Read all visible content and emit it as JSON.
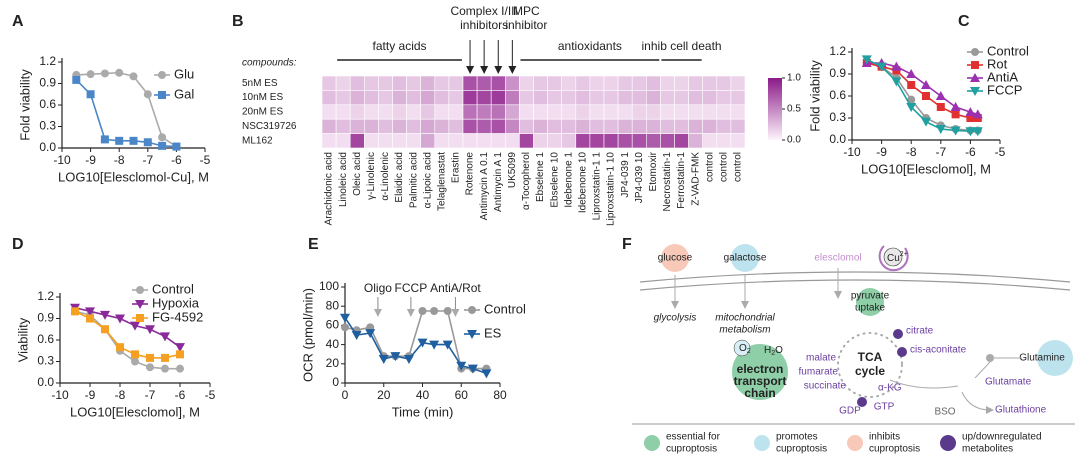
{
  "chart_data": [
    {
      "type": "line",
      "panel": "A",
      "xlabel": "LOG10[Elesclomol-Cu], M",
      "ylabel": "Fold viability",
      "xlim": [
        -10,
        -5
      ],
      "xticks": [
        -10,
        -9,
        -8,
        -7,
        -6,
        -5
      ],
      "ylim": [
        0,
        1.2
      ],
      "yticks": [
        {
          "value": 0,
          "label": "0.0"
        },
        0.3,
        0.6,
        0.9,
        1.2
      ],
      "x": [
        -9.5,
        -9,
        -8.5,
        -8,
        -7.5,
        -7,
        -6.5,
        -6
      ],
      "series": [
        {
          "name": "Glu",
          "color": "#aaaaaa",
          "marker": "circle",
          "values": [
            1.02,
            1.03,
            1.04,
            1.05,
            1.0,
            0.75,
            0.15,
            0.02
          ]
        },
        {
          "name": "Gal",
          "color": "#4a86c8",
          "marker": "square",
          "values": [
            0.95,
            0.75,
            0.12,
            0.1,
            0.1,
            0.08,
            0.03,
            0.02
          ]
        }
      ]
    },
    {
      "type": "heatmap",
      "panel": "B",
      "row_title": "compounds:",
      "groups": [
        {
          "lines": [
            "fatty acids"
          ]
        },
        {
          "lines": [
            "Complex I/III",
            "inhibitors"
          ]
        },
        {
          "lines": [
            "MPC",
            "inhibitor"
          ]
        },
        {
          "lines": [
            "antioxidants"
          ]
        },
        {
          "lines": [
            "inhib cell death"
          ]
        }
      ],
      "x": [
        "Arachidonic acid",
        "Linoleic acid",
        "Oleic acid",
        "γ-Linolenic",
        "α-Linolenic",
        "Elaidic acid",
        "Palmitic acid",
        "α-Lipoic acid",
        "Telaglenastat",
        "Erastin",
        "Rotenone",
        "Antimycin A 0.1",
        "Antimycin A 1",
        "UK5099",
        "α-Tocopherol",
        "Ebselene 1",
        "Ebselene 10",
        "Idebenone 1",
        "Idebenone 10",
        "Liproxstatin-1 1",
        "Liproxstatin-1 10",
        "JP4-039 1",
        "JP4-039 10",
        "Etomoxir",
        "Necrostatin-1",
        "Ferrostatin-1",
        "Z-VAD-FMK",
        "control",
        "control",
        "control"
      ],
      "y": [
        "5nM ES",
        "10nM ES",
        "20nM ES",
        "NSC319726",
        "ML162"
      ],
      "values": [
        [
          0.2,
          0.15,
          0.25,
          0.2,
          0.2,
          0.25,
          0.2,
          0.3,
          0.2,
          0.2,
          0.75,
          0.7,
          0.75,
          0.45,
          0.15,
          0.2,
          0.2,
          0.15,
          0.2,
          0.15,
          0.15,
          0.2,
          0.2,
          0.25,
          0.15,
          0.15,
          0.2,
          0.2,
          0.2,
          0.15
        ],
        [
          0.25,
          0.2,
          0.3,
          0.25,
          0.2,
          0.3,
          0.25,
          0.35,
          0.25,
          0.2,
          0.85,
          0.8,
          0.85,
          0.55,
          0.2,
          0.25,
          0.2,
          0.2,
          0.25,
          0.2,
          0.2,
          0.25,
          0.25,
          0.3,
          0.2,
          0.2,
          0.25,
          0.25,
          0.2,
          0.2
        ],
        [
          0.1,
          0.1,
          0.15,
          0.1,
          0.1,
          0.15,
          0.1,
          0.2,
          0.1,
          0.1,
          0.6,
          0.55,
          0.6,
          0.35,
          0.1,
          0.1,
          0.1,
          0.1,
          0.15,
          0.1,
          0.1,
          0.1,
          0.15,
          0.15,
          0.1,
          0.1,
          0.1,
          0.1,
          0.1,
          0.1
        ],
        [
          0.3,
          0.25,
          0.3,
          0.3,
          0.25,
          0.3,
          0.25,
          0.35,
          0.3,
          0.25,
          0.75,
          0.7,
          0.75,
          0.5,
          0.25,
          0.3,
          0.25,
          0.25,
          0.3,
          0.25,
          0.25,
          0.3,
          0.3,
          0.3,
          0.25,
          0.25,
          0.3,
          0.3,
          0.25,
          0.25
        ],
        [
          0.1,
          0.1,
          0.8,
          0.1,
          0.1,
          0.1,
          0.1,
          0.35,
          0.1,
          0.1,
          0.1,
          0.1,
          0.1,
          0.1,
          0.8,
          0.15,
          0.15,
          0.2,
          0.8,
          0.8,
          0.8,
          0.75,
          0.75,
          0.7,
          0.75,
          0.8,
          0.3,
          0.1,
          0.1,
          0.1
        ]
      ],
      "colorbar_ticks": [
        {
          "value": 1,
          "label": "1.0"
        },
        0.5,
        {
          "value": 0,
          "label": "0.0"
        }
      ],
      "clim": [
        0,
        1
      ],
      "color": "#8b1a89"
    },
    {
      "type": "line",
      "panel": "C",
      "xlabel": "LOG10[Elesclomol], M",
      "ylabel": "Fold viability",
      "xlim": [
        -10,
        -5
      ],
      "xticks": [
        -10,
        -9,
        -8,
        -7,
        -6,
        -5
      ],
      "ylim": [
        0,
        1.2
      ],
      "yticks": [
        {
          "value": 0,
          "label": "0.0"
        },
        0.3,
        0.6,
        0.9,
        1.2
      ],
      "x": [
        -9.5,
        -9,
        -8.5,
        -8,
        -7.5,
        -7,
        -6.5,
        -6,
        -5.75
      ],
      "series": [
        {
          "name": "Control",
          "color": "#999999",
          "marker": "circle",
          "values": [
            1.05,
            1.0,
            0.85,
            0.55,
            0.3,
            0.2,
            0.15,
            0.13,
            0.13
          ]
        },
        {
          "name": "Rot",
          "color": "#e03030",
          "marker": "square",
          "values": [
            1.05,
            1.0,
            0.95,
            0.75,
            0.6,
            0.45,
            0.35,
            0.3,
            0.3
          ]
        },
        {
          "name": "AntiA",
          "color": "#9b30b0",
          "marker": "triangle",
          "values": [
            1.05,
            1.05,
            1.0,
            0.9,
            0.75,
            0.6,
            0.45,
            0.38,
            0.35
          ]
        },
        {
          "name": "FCCP",
          "color": "#20a0a0",
          "marker": "down",
          "values": [
            1.1,
            1.0,
            0.8,
            0.45,
            0.25,
            0.15,
            0.13,
            0.12,
            0.12
          ]
        }
      ]
    },
    {
      "type": "line",
      "panel": "D",
      "xlabel": "LOG10[Elesclomol], M",
      "ylabel": "Viability",
      "xlim": [
        -10,
        -5
      ],
      "xticks": [
        -10,
        -9,
        -8,
        -7,
        -6,
        -5
      ],
      "ylim": [
        0,
        1.2
      ],
      "yticks": [
        {
          "value": 0,
          "label": "0.0"
        },
        0.3,
        0.6,
        0.9,
        1.2
      ],
      "x": [
        -9.5,
        -9,
        -8.5,
        -8,
        -7.5,
        -7,
        -6.5,
        -6
      ],
      "series": [
        {
          "name": "Control",
          "color": "#aaaaaa",
          "marker": "circle",
          "values": [
            1.0,
            0.95,
            0.75,
            0.45,
            0.3,
            0.22,
            0.2,
            0.2
          ]
        },
        {
          "name": "Hypoxia",
          "color": "#8a2a9a",
          "marker": "down",
          "values": [
            1.05,
            1.0,
            0.95,
            0.9,
            0.8,
            0.75,
            0.65,
            0.5
          ]
        },
        {
          "name": "FG-4592",
          "color": "#f5a020",
          "marker": "square",
          "values": [
            1.0,
            0.9,
            0.75,
            0.5,
            0.4,
            0.35,
            0.35,
            0.4
          ]
        }
      ]
    },
    {
      "type": "line",
      "panel": "E",
      "xlabel": "Time (min)",
      "ylabel": "OCR (pmol/min)",
      "xlim": [
        0,
        80
      ],
      "xticks": [
        0,
        20,
        40,
        60,
        80
      ],
      "ylim": [
        0,
        100
      ],
      "yticks": [
        0,
        20,
        40,
        60,
        80,
        100
      ],
      "x": [
        0,
        6,
        13,
        20,
        26,
        33,
        40,
        46,
        53,
        60,
        66,
        73
      ],
      "annotations": [
        {
          "text": "Oligo",
          "x": 17
        },
        {
          "text": "FCCP",
          "x": 34
        },
        {
          "text": "AntiA/Rot",
          "x": 57
        }
      ],
      "series": [
        {
          "name": "Control",
          "color": "#999999",
          "marker": "circle",
          "values": [
            58,
            55,
            58,
            28,
            28,
            28,
            75,
            75,
            75,
            15,
            15,
            15
          ]
        },
        {
          "name": "ES",
          "color": "#1f5f9f",
          "marker": "down",
          "values": [
            68,
            50,
            52,
            25,
            28,
            25,
            42,
            40,
            40,
            18,
            15,
            10
          ]
        }
      ]
    }
  ],
  "diagram": {
    "panel": "F",
    "glucose": "glucose",
    "galactose": "galactose",
    "elesclomol": "elesclomol",
    "cu": {
      "base": "Cu",
      "sup": "2+"
    },
    "glycolysis": "glycolysis",
    "mito": [
      "mitochondrial",
      "metabolism"
    ],
    "pyruvate": [
      "pyruvate",
      "uptake"
    ],
    "tca": [
      "TCA",
      "cycle"
    ],
    "etc": [
      "electron",
      "transport",
      "chain"
    ],
    "o2": "O",
    "o2sub": "2",
    "h2o": "H",
    "h2osub": "2",
    "h2otail": "O",
    "metabolites": {
      "citrate": "citrate",
      "cis": "cis-aconitate",
      "malate": "malate",
      "fumarate": "fumarate",
      "succinate": "succinate",
      "akg": "α-KG",
      "gdp": "GDP",
      "gtp": "GTP",
      "glutamate": "Glutamate",
      "glutathione": "Glutathione"
    },
    "glutamine": "Glutamine",
    "bso": "BSO",
    "legend": [
      {
        "lines": [
          "essential for",
          "cuproptosis"
        ]
      },
      {
        "lines": [
          "promotes",
          "cuproptosis"
        ]
      },
      {
        "lines": [
          "inhibits",
          "cuproptosis"
        ]
      },
      {
        "lines": [
          "up/downregulated",
          "metabolites"
        ]
      }
    ]
  }
}
